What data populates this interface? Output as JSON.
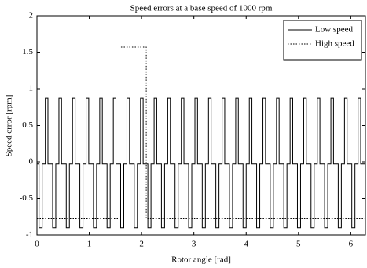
{
  "chart_data": {
    "type": "line",
    "title": "Speed errors at a base speed of 1000 rpm",
    "x_label": "Rotor angle [rad]",
    "y_label": "Speed error [rpm]",
    "xlim": [
      0,
      6.28
    ],
    "ylim": [
      -1,
      2
    ],
    "xticks": [
      0,
      1,
      2,
      3,
      4,
      5,
      6
    ],
    "yticks": [
      -1,
      -0.5,
      0,
      0.5,
      1,
      1.5,
      2
    ],
    "grid": false,
    "legend_position": "upper-right",
    "series": [
      {
        "name": "Low speed",
        "color": "#000000",
        "line_style": "solid",
        "x": [
          0,
          0.04,
          0.04,
          0.1,
          0.1,
          0.16,
          0.16,
          0.21,
          0.21,
          0.3,
          0.3,
          0.36,
          0.36,
          0.42,
          0.42,
          0.47,
          0.47,
          0.56,
          0.56,
          0.62,
          0.62,
          0.68,
          0.68,
          0.73,
          0.73,
          0.82,
          0.82,
          0.88,
          0.88,
          0.94,
          0.94,
          0.99,
          0.99,
          1.08,
          1.08,
          1.14,
          1.14,
          1.2,
          1.2,
          1.25,
          1.25,
          1.34,
          1.34,
          1.4,
          1.4,
          1.46,
          1.46,
          1.51,
          1.51,
          1.6,
          1.6,
          1.66,
          1.66,
          1.72,
          1.72,
          1.77,
          1.77,
          1.86,
          1.86,
          1.92,
          1.92,
          1.98,
          1.98,
          2.03,
          2.03,
          2.12,
          2.12,
          2.18,
          2.18,
          2.24,
          2.24,
          2.29,
          2.29,
          2.38,
          2.38,
          2.44,
          2.44,
          2.5,
          2.5,
          2.55,
          2.55,
          2.64,
          2.64,
          2.7,
          2.7,
          2.76,
          2.76,
          2.81,
          2.81,
          2.9,
          2.9,
          2.96,
          2.96,
          3.02,
          3.02,
          3.07,
          3.07,
          3.16,
          3.16,
          3.22,
          3.22,
          3.28,
          3.28,
          3.33,
          3.33,
          3.42,
          3.42,
          3.48,
          3.48,
          3.54,
          3.54,
          3.59,
          3.59,
          3.68,
          3.68,
          3.74,
          3.74,
          3.8,
          3.8,
          3.85,
          3.85,
          3.94,
          3.94,
          4,
          4,
          4.06,
          4.06,
          4.11,
          4.11,
          4.2,
          4.2,
          4.26,
          4.26,
          4.32,
          4.32,
          4.37,
          4.37,
          4.46,
          4.46,
          4.52,
          4.52,
          4.58,
          4.58,
          4.63,
          4.63,
          4.72,
          4.72,
          4.78,
          4.78,
          4.84,
          4.84,
          4.89,
          4.89,
          4.98,
          4.98,
          5.04,
          5.04,
          5.1,
          5.1,
          5.15,
          5.15,
          5.24,
          5.24,
          5.3,
          5.3,
          5.36,
          5.36,
          5.41,
          5.41,
          5.5,
          5.5,
          5.56,
          5.56,
          5.62,
          5.62,
          5.67,
          5.67,
          5.76,
          5.76,
          5.82,
          5.82,
          5.88,
          5.88,
          5.93,
          5.93,
          6.02,
          6.02,
          6.08,
          6.08,
          6.14,
          6.14,
          6.19,
          6.19,
          6.28
        ],
        "values": [
          -0.03,
          -0.03,
          -0.9,
          -0.9,
          -0.03,
          -0.03,
          0.87,
          0.87,
          -0.03,
          -0.03,
          -0.9,
          -0.9,
          -0.03,
          -0.03,
          0.87,
          0.87,
          -0.03,
          -0.03,
          -0.9,
          -0.9,
          -0.03,
          -0.03,
          0.87,
          0.87,
          -0.03,
          -0.03,
          -0.9,
          -0.9,
          -0.03,
          -0.03,
          0.87,
          0.87,
          -0.03,
          -0.03,
          -0.9,
          -0.9,
          -0.03,
          -0.03,
          0.87,
          0.87,
          -0.03,
          -0.03,
          -0.9,
          -0.9,
          -0.03,
          -0.03,
          0.87,
          0.87,
          -0.03,
          -0.03,
          -0.9,
          -0.9,
          -0.03,
          -0.03,
          0.87,
          0.87,
          -0.03,
          -0.03,
          -0.9,
          -0.9,
          -0.03,
          -0.03,
          0.87,
          0.87,
          -0.03,
          -0.03,
          -0.9,
          -0.9,
          -0.03,
          -0.03,
          0.87,
          0.87,
          -0.03,
          -0.03,
          -0.9,
          -0.9,
          -0.03,
          -0.03,
          0.87,
          0.87,
          -0.03,
          -0.03,
          -0.9,
          -0.9,
          -0.03,
          -0.03,
          0.87,
          0.87,
          -0.03,
          -0.03,
          -0.9,
          -0.9,
          -0.03,
          -0.03,
          0.87,
          0.87,
          -0.03,
          -0.03,
          -0.9,
          -0.9,
          -0.03,
          -0.03,
          0.87,
          0.87,
          -0.03,
          -0.03,
          -0.9,
          -0.9,
          -0.03,
          -0.03,
          0.87,
          0.87,
          -0.03,
          -0.03,
          -0.9,
          -0.9,
          -0.03,
          -0.03,
          0.87,
          0.87,
          -0.03,
          -0.03,
          -0.9,
          -0.9,
          -0.03,
          -0.03,
          0.87,
          0.87,
          -0.03,
          -0.03,
          -0.9,
          -0.9,
          -0.03,
          -0.03,
          0.87,
          0.87,
          -0.03,
          -0.03,
          -0.9,
          -0.9,
          -0.03,
          -0.03,
          0.87,
          0.87,
          -0.03,
          -0.03,
          -0.9,
          -0.9,
          -0.03,
          -0.03,
          0.87,
          0.87,
          -0.03,
          -0.03,
          -0.9,
          -0.9,
          -0.03,
          -0.03,
          0.87,
          0.87,
          -0.03,
          -0.03,
          -0.9,
          -0.9,
          -0.03,
          -0.03,
          0.87,
          0.87,
          -0.03,
          -0.03,
          -0.9,
          -0.9,
          -0.03,
          -0.03,
          0.87,
          0.87,
          -0.03,
          -0.03,
          -0.9,
          -0.9,
          -0.03,
          -0.03,
          0.87,
          0.87,
          -0.03,
          -0.03,
          -0.9,
          -0.9,
          -0.03,
          -0.03,
          0.87,
          0.87,
          -0.03,
          -0.03
        ]
      },
      {
        "name": "High speed",
        "color": "#000000",
        "line_style": "dotted",
        "x": [
          0,
          1.57,
          1.57,
          2.09,
          2.09,
          6.28
        ],
        "values": [
          -0.78,
          -0.78,
          1.57,
          1.57,
          -0.78,
          -0.78
        ]
      }
    ]
  }
}
